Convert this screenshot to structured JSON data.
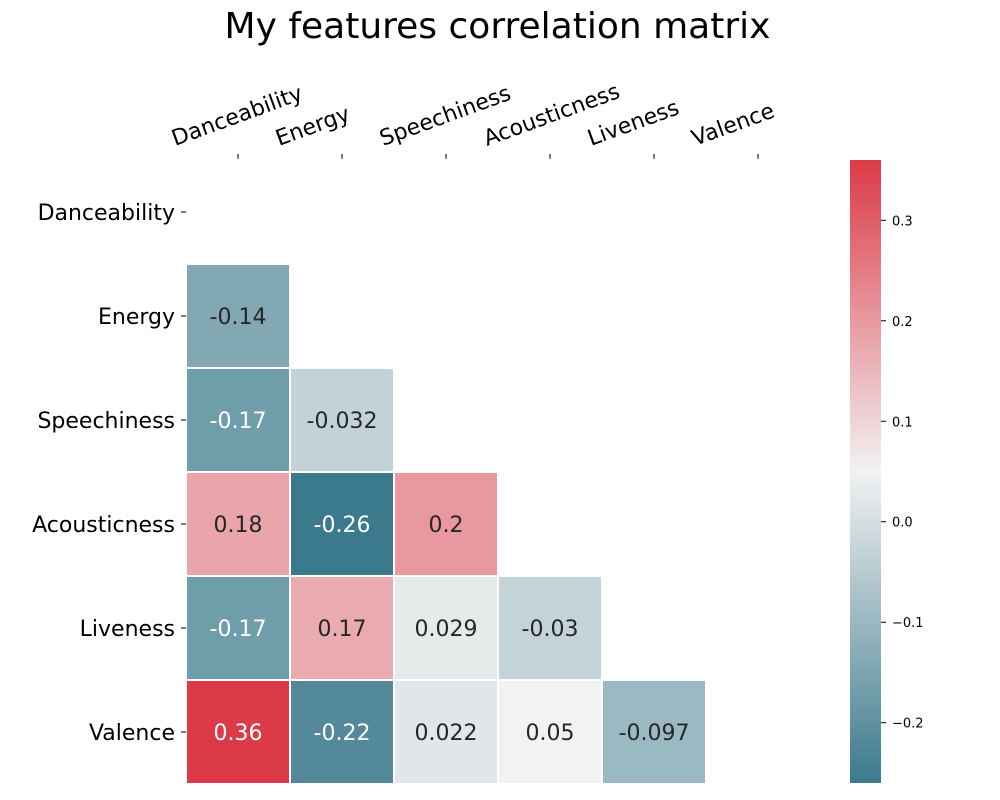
{
  "chart_data": {
    "type": "heatmap",
    "title": "My features correlation matrix",
    "labels": [
      "Danceability",
      "Energy",
      "Speechiness",
      "Acousticness",
      "Liveness",
      "Valence"
    ],
    "mask": "upper triangle including diagonal",
    "cells": [
      {
        "row": "Energy",
        "col": "Danceability",
        "value": -0.14,
        "label": "-0.14"
      },
      {
        "row": "Speechiness",
        "col": "Danceability",
        "value": -0.17,
        "label": "-0.17"
      },
      {
        "row": "Speechiness",
        "col": "Energy",
        "value": -0.032,
        "label": "-0.032"
      },
      {
        "row": "Acousticness",
        "col": "Danceability",
        "value": 0.18,
        "label": "0.18"
      },
      {
        "row": "Acousticness",
        "col": "Energy",
        "value": -0.26,
        "label": "-0.26"
      },
      {
        "row": "Acousticness",
        "col": "Speechiness",
        "value": 0.2,
        "label": "0.2"
      },
      {
        "row": "Liveness",
        "col": "Danceability",
        "value": -0.17,
        "label": "-0.17"
      },
      {
        "row": "Liveness",
        "col": "Energy",
        "value": 0.17,
        "label": "0.17"
      },
      {
        "row": "Liveness",
        "col": "Speechiness",
        "value": 0.029,
        "label": "0.029"
      },
      {
        "row": "Liveness",
        "col": "Acousticness",
        "value": -0.03,
        "label": "-0.03"
      },
      {
        "row": "Valence",
        "col": "Danceability",
        "value": 0.36,
        "label": "0.36"
      },
      {
        "row": "Valence",
        "col": "Energy",
        "value": -0.22,
        "label": "-0.22"
      },
      {
        "row": "Valence",
        "col": "Speechiness",
        "value": 0.022,
        "label": "0.022"
      },
      {
        "row": "Valence",
        "col": "Acousticness",
        "value": 0.05,
        "label": "0.05"
      },
      {
        "row": "Valence",
        "col": "Liveness",
        "value": -0.097,
        "label": "-0.097"
      }
    ],
    "colorbar": {
      "range": [
        -0.26,
        0.36
      ],
      "ticks": [
        {
          "value": 0.3,
          "label": "0.3"
        },
        {
          "value": 0.2,
          "label": "0.2"
        },
        {
          "value": 0.1,
          "label": "0.1"
        },
        {
          "value": 0.0,
          "label": "0.0"
        },
        {
          "value": -0.1,
          "label": "−0.1"
        },
        {
          "value": -0.2,
          "label": "−0.2"
        }
      ],
      "colors": {
        "low": "#3b7a8d",
        "mid": "#f2f2f2",
        "high": "#dc3a46"
      }
    },
    "grid": false,
    "x_axis_position": "top"
  }
}
